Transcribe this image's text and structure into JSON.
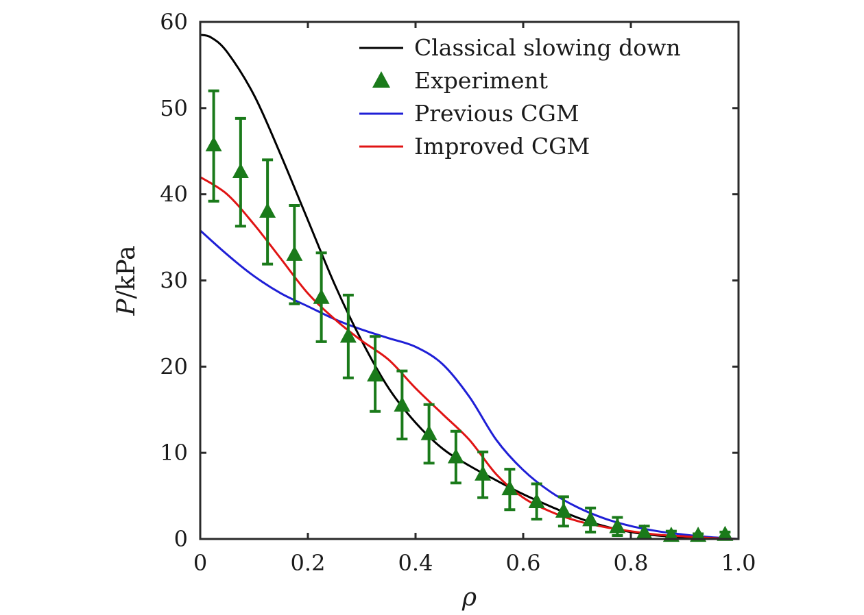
{
  "chart_data": {
    "type": "line",
    "title": "",
    "xlabel": "ρ",
    "ylabel_italic": "P",
    "ylabel_rest": "/kPa",
    "xlim": [
      0,
      1
    ],
    "ylim": [
      0,
      60
    ],
    "x_ticks": [
      0,
      0.2,
      0.4,
      0.6,
      0.8,
      1.0
    ],
    "x_tick_labels": [
      "0",
      "0.2",
      "0.4",
      "0.6",
      "0.8",
      "1.0"
    ],
    "y_ticks": [
      0,
      10,
      20,
      30,
      40,
      50,
      60
    ],
    "y_tick_labels": [
      "0",
      "10",
      "20",
      "30",
      "40",
      "50",
      "60"
    ],
    "grid": false,
    "legend_position": "top-right",
    "series": [
      {
        "name": "Classical slowing down",
        "kind": "line",
        "color": "#000000",
        "x": [
          0,
          0.02,
          0.05,
          0.1,
          0.15,
          0.2,
          0.25,
          0.3,
          0.35,
          0.4,
          0.45,
          0.5,
          0.55,
          0.6,
          0.65,
          0.7,
          0.75,
          0.8,
          0.85,
          0.9,
          0.95,
          1.0
        ],
        "y": [
          58.5,
          58.2,
          56.5,
          51.5,
          44.5,
          37.0,
          29.5,
          23.0,
          17.5,
          13.5,
          10.5,
          8.5,
          6.8,
          5.2,
          3.8,
          2.5,
          1.5,
          0.8,
          0.4,
          0.2,
          0.1,
          0.0
        ]
      },
      {
        "name": "Experiment",
        "kind": "errorbar",
        "color": "#1a7a1a",
        "x": [
          0.025,
          0.075,
          0.125,
          0.175,
          0.225,
          0.275,
          0.325,
          0.375,
          0.425,
          0.475,
          0.525,
          0.575,
          0.625,
          0.675,
          0.725,
          0.775,
          0.825,
          0.875,
          0.925,
          0.975
        ],
        "y": [
          45.7,
          42.6,
          38.0,
          33.0,
          28.0,
          23.5,
          19.0,
          15.5,
          12.2,
          9.5,
          7.5,
          5.8,
          4.3,
          3.2,
          2.2,
          1.4,
          0.7,
          0.4,
          0.4,
          0.5
        ],
        "yerr_low": [
          39.2,
          36.3,
          31.9,
          27.3,
          22.9,
          18.7,
          14.8,
          11.6,
          8.8,
          6.5,
          4.8,
          3.4,
          2.3,
          1.5,
          0.8,
          0.4,
          0.1,
          0.0,
          0.0,
          0.0
        ],
        "yerr_high": [
          52.0,
          48.8,
          44.0,
          38.7,
          33.2,
          28.3,
          23.5,
          19.5,
          15.6,
          12.5,
          10.1,
          8.1,
          6.4,
          4.9,
          3.6,
          2.5,
          1.5,
          0.9,
          0.6,
          0.8
        ]
      },
      {
        "name": "Previous CGM",
        "kind": "line",
        "color": "#1f1fd6",
        "x": [
          0,
          0.05,
          0.1,
          0.15,
          0.2,
          0.25,
          0.3,
          0.35,
          0.4,
          0.45,
          0.5,
          0.55,
          0.6,
          0.65,
          0.7,
          0.75,
          0.8,
          0.85,
          0.9,
          0.95,
          1.0
        ],
        "y": [
          35.8,
          33.0,
          30.5,
          28.5,
          27.0,
          25.5,
          24.3,
          23.3,
          22.3,
          20.3,
          16.5,
          11.5,
          8.0,
          5.5,
          3.7,
          2.4,
          1.5,
          0.9,
          0.5,
          0.2,
          0.0
        ]
      },
      {
        "name": "Improved CGM",
        "kind": "line",
        "color": "#e01414",
        "x": [
          0,
          0.05,
          0.1,
          0.15,
          0.2,
          0.25,
          0.3,
          0.35,
          0.4,
          0.45,
          0.5,
          0.55,
          0.6,
          0.65,
          0.7,
          0.75,
          0.8,
          0.85,
          0.9,
          0.95,
          1.0
        ],
        "y": [
          42.0,
          40.0,
          36.5,
          32.5,
          28.5,
          25.5,
          23.0,
          20.8,
          17.5,
          14.5,
          11.5,
          7.5,
          4.8,
          3.2,
          2.1,
          1.4,
          0.9,
          0.5,
          0.3,
          0.1,
          0.0
        ]
      }
    ]
  }
}
